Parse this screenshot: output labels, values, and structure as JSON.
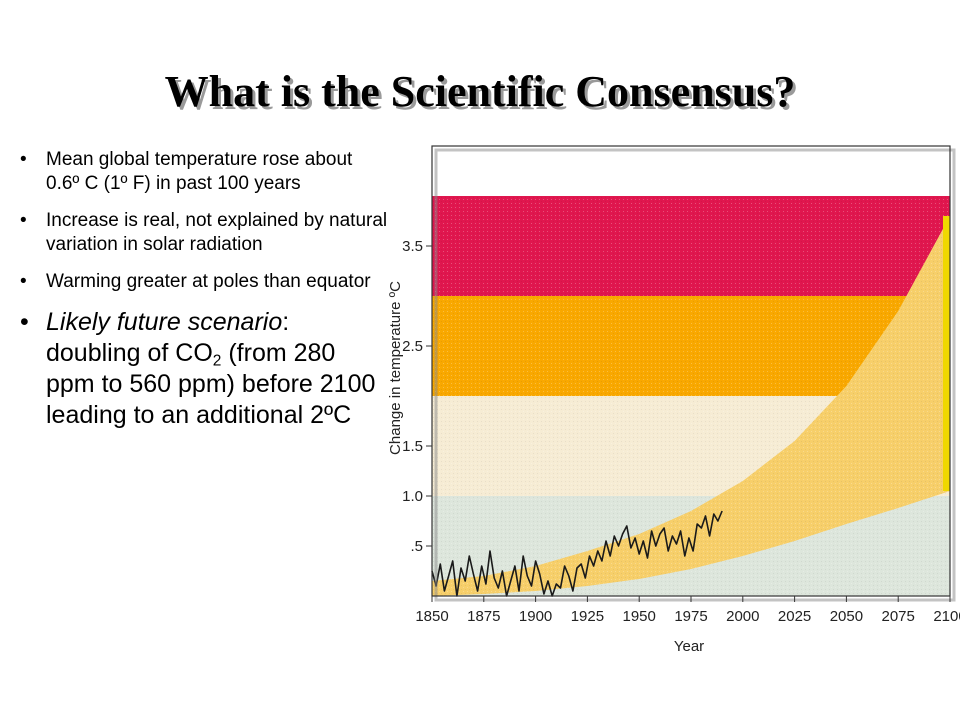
{
  "title": "What is the Scientific Consensus?",
  "bullets": [
    {
      "text": "Mean global temperature rose about 0.6º C (1º F) in past 100 years"
    },
    {
      "text": "Increase is real, not explained by natural variation in solar radiation"
    },
    {
      "text": "Warming greater at poles than equator"
    }
  ],
  "scenario": {
    "lead": "Likely future scenario",
    "colon": ":",
    "text_a": "doubling of CO",
    "sub": "2",
    "text_b": " (from 280 ppm to 560 ppm) before 2100 leading to an additional 2ºC"
  },
  "colors": {
    "band_top": "#e0164e",
    "band_orange": "#f9a800",
    "band_cream": "#f6ecd4",
    "band_bottom": "#dde6dc",
    "projection": "#f7cf6a",
    "projection_edge": "#f0d800",
    "observed_line": "#1a1a1a"
  },
  "chart_data": {
    "type": "area",
    "xlabel": "Year",
    "ylabel": "Change in temperature ºC",
    "xlim": [
      1850,
      2100
    ],
    "ylim": [
      0,
      4.5
    ],
    "x_ticks": [
      1850,
      1875,
      1900,
      1925,
      1950,
      1975,
      2000,
      2025,
      2050,
      2075,
      2100
    ],
    "y_ticks": [
      ".5",
      "1.0",
      "1.5",
      "2.5",
      "3.5"
    ],
    "bands": [
      {
        "from": 0,
        "to": 1.0
      },
      {
        "from": 1.0,
        "to": 2.0
      },
      {
        "from": 2.0,
        "to": 3.0
      },
      {
        "from": 3.0,
        "to": 4.0
      }
    ],
    "projection_upper": {
      "x": [
        1850,
        1875,
        1900,
        1925,
        1950,
        1975,
        2000,
        2025,
        2050,
        2075,
        2100
      ],
      "y": [
        0.15,
        0.2,
        0.3,
        0.45,
        0.62,
        0.85,
        1.15,
        1.55,
        2.1,
        2.85,
        3.8
      ]
    },
    "projection_lower": {
      "x": [
        1850,
        1875,
        1900,
        1925,
        1950,
        1975,
        2000,
        2025,
        2050,
        2075,
        2100
      ],
      "y": [
        0.0,
        0.02,
        0.05,
        0.1,
        0.17,
        0.27,
        0.4,
        0.55,
        0.72,
        0.88,
        1.05
      ]
    },
    "series": [
      {
        "x": [
          1850,
          1852,
          1854,
          1856,
          1858,
          1860,
          1862,
          1864,
          1866,
          1868,
          1870,
          1872,
          1874,
          1876,
          1878,
          1880,
          1882,
          1884,
          1886,
          1888,
          1890,
          1892,
          1894,
          1896,
          1898,
          1900,
          1902,
          1904,
          1906,
          1908,
          1910,
          1912,
          1914,
          1916,
          1918,
          1920,
          1922,
          1924,
          1926,
          1928,
          1930,
          1932,
          1934,
          1936,
          1938,
          1940,
          1942,
          1944,
          1946,
          1948,
          1950,
          1952,
          1954,
          1956,
          1958,
          1960,
          1962,
          1964,
          1966,
          1968,
          1970,
          1972,
          1974,
          1976,
          1978,
          1980,
          1982,
          1984,
          1986,
          1988,
          1990
        ],
        "y": [
          0.25,
          0.1,
          0.32,
          0.05,
          0.2,
          0.35,
          0.0,
          0.28,
          0.15,
          0.4,
          0.22,
          0.05,
          0.3,
          0.12,
          0.45,
          0.18,
          0.08,
          0.25,
          0.0,
          0.15,
          0.3,
          0.05,
          0.4,
          0.2,
          0.1,
          0.35,
          0.22,
          0.02,
          0.15,
          0.0,
          0.12,
          0.08,
          0.3,
          0.2,
          0.05,
          0.28,
          0.32,
          0.18,
          0.4,
          0.3,
          0.45,
          0.35,
          0.55,
          0.4,
          0.6,
          0.5,
          0.62,
          0.7,
          0.48,
          0.58,
          0.42,
          0.55,
          0.38,
          0.65,
          0.5,
          0.62,
          0.68,
          0.45,
          0.6,
          0.52,
          0.65,
          0.4,
          0.58,
          0.45,
          0.72,
          0.68,
          0.8,
          0.6,
          0.82,
          0.75,
          0.85
        ]
      }
    ]
  }
}
